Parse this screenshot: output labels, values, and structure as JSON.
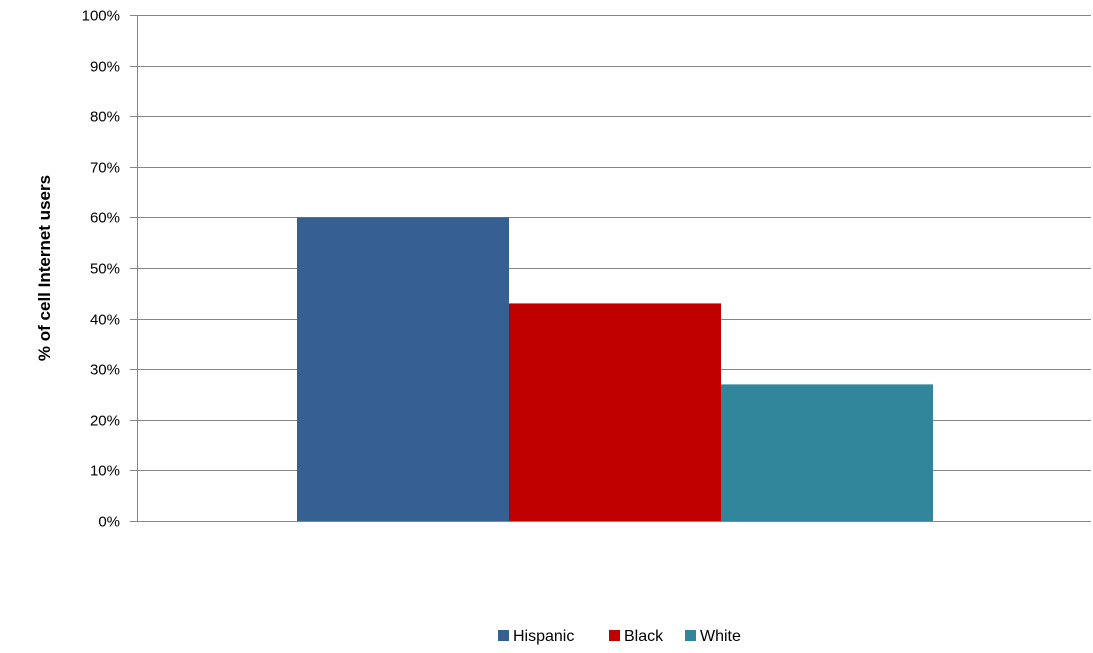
{
  "chart_data": {
    "type": "bar",
    "title": "",
    "xlabel": "",
    "ylabel": "% of cell Internet users",
    "ylim": [
      0,
      100
    ],
    "y_ticks": [
      0,
      10,
      20,
      30,
      40,
      50,
      60,
      70,
      80,
      90,
      100
    ],
    "y_tick_labels": [
      "0%",
      "10%",
      "20%",
      "30%",
      "40%",
      "50%",
      "60%",
      "70%",
      "80%",
      "90%",
      "100%"
    ],
    "grid": true,
    "legend_position": "bottom",
    "series": [
      {
        "name": "Hispanic",
        "values": [
          60
        ],
        "color": "#376092"
      },
      {
        "name": "Black",
        "values": [
          43
        ],
        "color": "#c00000"
      },
      {
        "name": "White",
        "values": [
          27
        ],
        "color": "#31869b"
      }
    ]
  }
}
